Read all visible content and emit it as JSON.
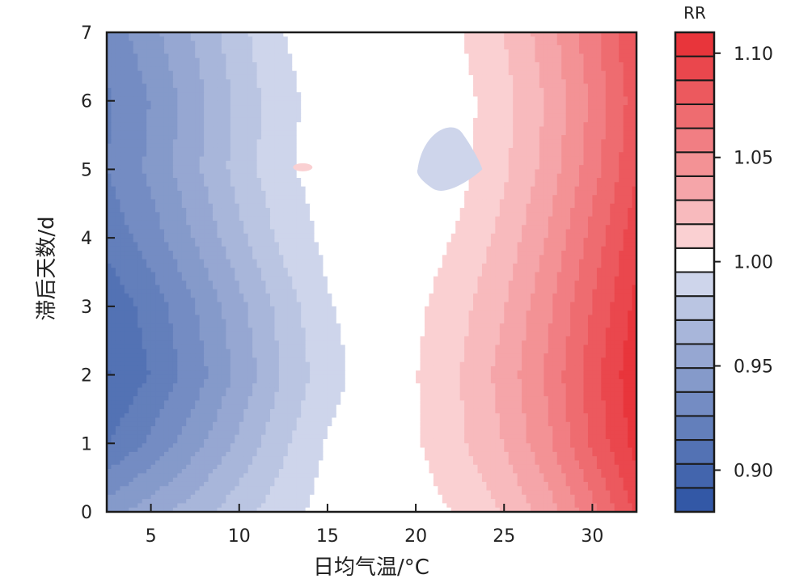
{
  "chart_data": {
    "type": "heatmap",
    "subtype": "filled-contour",
    "xlabel": "日均气温/°C",
    "ylabel": "滞后天数/d",
    "xlim": [
      2.5,
      32.5
    ],
    "ylim": [
      0,
      7
    ],
    "xticks": [
      5,
      10,
      15,
      20,
      25,
      30
    ],
    "yticks": [
      0,
      1,
      2,
      3,
      4,
      5,
      6,
      7
    ],
    "grid": false,
    "colorbar": {
      "title": "RR",
      "range": [
        0.88,
        1.11
      ],
      "levels": 20,
      "ticks": [
        0.9,
        0.95,
        1.0,
        1.05,
        1.1
      ],
      "tick_labels": [
        "0.90",
        "0.95",
        "1.00",
        "1.05",
        "1.10"
      ],
      "position": "right",
      "low_color": "#3358a6",
      "mid_color": "#ffffff",
      "high_color": "#e8353b"
    },
    "lags": [
      0,
      1,
      2,
      3,
      4,
      5,
      6,
      7
    ],
    "temperatures": [
      2.5,
      5,
      7.5,
      10,
      12.5,
      15,
      17.5,
      20,
      22.5,
      25,
      27.5,
      30,
      32.5
    ],
    "rr": [
      [
        0.944,
        0.955,
        0.967,
        0.979,
        0.99,
        1.0,
        1.0,
        1.001,
        1.008,
        1.019,
        1.035,
        1.06,
        1.09
      ],
      [
        0.914,
        0.928,
        0.945,
        0.963,
        0.981,
        0.996,
        1.0,
        1.005,
        1.016,
        1.03,
        1.05,
        1.078,
        1.103
      ],
      [
        0.902,
        0.915,
        0.932,
        0.952,
        0.973,
        0.991,
        1.0,
        1.006,
        1.018,
        1.034,
        1.055,
        1.082,
        1.108
      ],
      [
        0.906,
        0.919,
        0.937,
        0.957,
        0.977,
        0.994,
        1.0,
        1.004,
        1.014,
        1.029,
        1.05,
        1.076,
        1.102
      ],
      [
        0.918,
        0.932,
        0.95,
        0.969,
        0.987,
        0.998,
        1.0,
        1.0,
        1.008,
        1.022,
        1.042,
        1.068,
        1.095
      ],
      [
        0.926,
        0.94,
        0.958,
        0.977,
        0.993,
        1.0,
        1.0,
        0.998,
        1.003,
        1.016,
        1.034,
        1.059,
        1.086
      ],
      [
        0.924,
        0.938,
        0.956,
        0.975,
        0.992,
        1.0,
        1.0,
        1.0,
        1.002,
        1.014,
        1.031,
        1.055,
        1.082
      ],
      [
        0.93,
        0.945,
        0.962,
        0.98,
        0.995,
        1.0,
        1.0,
        1.001,
        1.006,
        1.018,
        1.036,
        1.06,
        1.087
      ]
    ],
    "annotations": [
      {
        "type": "island",
        "x": 21.8,
        "y": 5.0,
        "rr": 0.99
      },
      {
        "type": "island",
        "x": 13.6,
        "y": 5.03,
        "rr": 1.01
      }
    ]
  }
}
